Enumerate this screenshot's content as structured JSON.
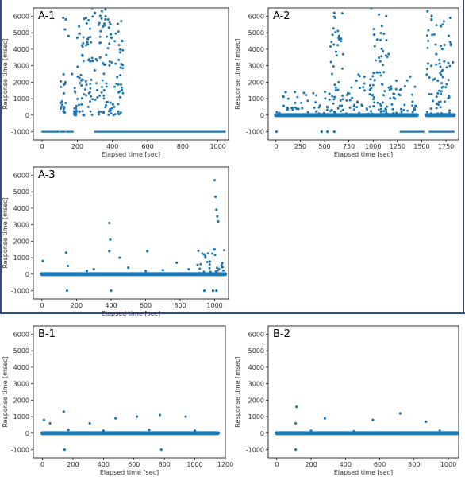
{
  "chart_data": [
    {
      "id": "A-1",
      "type": "scatter",
      "title": "A-1",
      "xlabel": "Elapsed time [sec]",
      "ylabel": "Response time [msec]",
      "xlim": [
        -50,
        1060
      ],
      "ylim": [
        -1500,
        6500
      ],
      "xticks": [
        0,
        200,
        400,
        600,
        800,
        1000
      ],
      "yticks": [
        -1000,
        0,
        1000,
        2000,
        3000,
        4000,
        5000,
        6000
      ],
      "color": "#1f77b4",
      "grid": false,
      "baseline_segments": [
        {
          "y": -1000,
          "x_start": 0,
          "x_end": 95
        },
        {
          "y": -1000,
          "x_start": 105,
          "x_end": 130
        },
        {
          "y": -1000,
          "x_start": 140,
          "x_end": 175
        },
        {
          "y": -1000,
          "x_start": 300,
          "x_end": 1040
        }
      ],
      "dense_bands": [
        {
          "x_start": 100,
          "x_end": 135,
          "y_min": 0,
          "y_max": 2500
        },
        {
          "x_start": 175,
          "x_end": 200,
          "y_min": 0,
          "y_max": 1800
        },
        {
          "x_start": 200,
          "x_end": 310,
          "y_min": 0,
          "y_max": 6000
        },
        {
          "x_start": 310,
          "x_end": 380,
          "y_min": 0,
          "y_max": 6500
        },
        {
          "x_start": 380,
          "x_end": 460,
          "y_min": 0,
          "y_max": 5700
        }
      ],
      "points": [
        [
          120,
          5900
        ],
        [
          130,
          5200
        ],
        [
          135,
          5800
        ],
        [
          150,
          4800
        ],
        [
          200,
          4700
        ],
        [
          250,
          5900
        ],
        [
          285,
          6500
        ],
        [
          300,
          6200
        ],
        [
          340,
          6300
        ],
        [
          360,
          5800
        ],
        [
          380,
          5300
        ],
        [
          390,
          4900
        ],
        [
          395,
          4700
        ],
        [
          450,
          5700
        ],
        [
          455,
          4500
        ],
        [
          450,
          3100
        ],
        [
          330,
          3500
        ],
        [
          260,
          4300
        ],
        [
          230,
          3600
        ],
        [
          170,
          2500
        ]
      ]
    },
    {
      "id": "A-2",
      "type": "scatter",
      "title": "A-2",
      "xlabel": "Elapsed time [sec]",
      "ylabel": "Response time [msec]",
      "xlim": [
        -80,
        1880
      ],
      "ylim": [
        -1500,
        6500
      ],
      "xticks": [
        0,
        250,
        500,
        750,
        1000,
        1250,
        1500,
        1750
      ],
      "yticks": [
        -1000,
        0,
        1000,
        2000,
        3000,
        4000,
        5000,
        6000
      ],
      "color": "#1f77b4",
      "grid": false,
      "baseline_segments": [
        {
          "y": 0,
          "x_start": 0,
          "x_end": 1450
        },
        {
          "y": 0,
          "x_start": 1550,
          "x_end": 1830
        },
        {
          "y": -1000,
          "x_start": 1280,
          "x_end": 1520
        },
        {
          "y": -1000,
          "x_start": 1580,
          "x_end": 1830
        }
      ],
      "dense_bands": [
        {
          "x_start": 0,
          "x_end": 550,
          "y_min": 0,
          "y_max": 1500
        },
        {
          "x_start": 550,
          "x_end": 700,
          "y_min": 0,
          "y_max": 6200
        },
        {
          "x_start": 700,
          "x_end": 1000,
          "y_min": 0,
          "y_max": 2500
        },
        {
          "x_start": 1000,
          "x_end": 1150,
          "y_min": 0,
          "y_max": 6000
        },
        {
          "x_start": 1150,
          "x_end": 1450,
          "y_min": 0,
          "y_max": 2500
        },
        {
          "x_start": 1550,
          "x_end": 1800,
          "y_min": 0,
          "y_max": 6300
        }
      ],
      "points": [
        [
          5,
          -1000
        ],
        [
          470,
          -1000
        ],
        [
          530,
          -1000
        ],
        [
          600,
          6200
        ],
        [
          610,
          5900
        ],
        [
          980,
          6500
        ],
        [
          1060,
          6100
        ],
        [
          1135,
          6000
        ],
        [
          1160,
          3700
        ],
        [
          1560,
          6300
        ],
        [
          1600,
          5800
        ],
        [
          1650,
          3700
        ],
        [
          1800,
          4300
        ],
        [
          1820,
          3200
        ],
        [
          100,
          1400
        ],
        [
          600,
          -1000
        ]
      ]
    },
    {
      "id": "A-3",
      "type": "scatter",
      "title": "A-3",
      "xlabel": "Elapsed time [sec]",
      "ylabel": "Response time [msec]",
      "xlim": [
        -50,
        1080
      ],
      "ylim": [
        -1500,
        6500
      ],
      "xticks": [
        0,
        200,
        400,
        600,
        800,
        1000
      ],
      "yticks": [
        -1000,
        0,
        1000,
        2000,
        3000,
        4000,
        5000,
        6000
      ],
      "color": "#1f77b4",
      "grid": false,
      "baseline_segments": [
        {
          "y": 0,
          "x_start": 0,
          "x_end": 1060
        }
      ],
      "dense_bands": [
        {
          "x_start": 900,
          "x_end": 1060,
          "y_min": 0,
          "y_max": 1600
        }
      ],
      "points": [
        [
          5,
          800
        ],
        [
          140,
          1300
        ],
        [
          145,
          -1000
        ],
        [
          390,
          3100
        ],
        [
          395,
          2100
        ],
        [
          400,
          -1000
        ],
        [
          390,
          1400
        ],
        [
          450,
          1000
        ],
        [
          610,
          1400
        ],
        [
          780,
          700
        ],
        [
          1000,
          5700
        ],
        [
          1005,
          4700
        ],
        [
          1010,
          3900
        ],
        [
          1015,
          3500
        ],
        [
          1020,
          3200
        ],
        [
          1000,
          1500
        ],
        [
          940,
          -1000
        ],
        [
          990,
          -1000
        ],
        [
          1010,
          -1000
        ],
        [
          150,
          500
        ],
        [
          300,
          300
        ],
        [
          500,
          400
        ],
        [
          600,
          200
        ],
        [
          700,
          250
        ],
        [
          850,
          300
        ],
        [
          260,
          200
        ]
      ]
    },
    {
      "id": "B-1",
      "type": "scatter",
      "title": "B-1",
      "xlabel": "Elapsed time [sec]",
      "ylabel": "Response time [msec]",
      "xlim": [
        -60,
        1200
      ],
      "ylim": [
        -1500,
        6500
      ],
      "xticks": [
        0,
        200,
        400,
        600,
        800,
        1000,
        1200
      ],
      "yticks": [
        -1000,
        0,
        1000,
        2000,
        3000,
        4000,
        5000,
        6000
      ],
      "color": "#1f77b4",
      "grid": false,
      "baseline_segments": [
        {
          "y": 0,
          "x_start": 0,
          "x_end": 1150
        }
      ],
      "dense_bands": [],
      "points": [
        [
          10,
          800
        ],
        [
          50,
          600
        ],
        [
          140,
          1300
        ],
        [
          145,
          -1000
        ],
        [
          310,
          600
        ],
        [
          480,
          900
        ],
        [
          620,
          1000
        ],
        [
          770,
          1100
        ],
        [
          780,
          -1000
        ],
        [
          940,
          1000
        ],
        [
          170,
          200
        ],
        [
          400,
          150
        ],
        [
          700,
          200
        ],
        [
          1000,
          150
        ]
      ]
    },
    {
      "id": "B-2",
      "type": "scatter",
      "title": "B-2",
      "xlabel": "Elapsed time [sec]",
      "ylabel": "Response time [msec]",
      "xlim": [
        -50,
        1060
      ],
      "ylim": [
        -1500,
        6500
      ],
      "xticks": [
        0,
        200,
        400,
        600,
        800,
        1000
      ],
      "yticks": [
        -1000,
        0,
        1000,
        2000,
        3000,
        4000,
        5000,
        6000
      ],
      "color": "#1f77b4",
      "grid": false,
      "baseline_segments": [
        {
          "y": 0,
          "x_start": 0,
          "x_end": 1050
        }
      ],
      "dense_bands": [],
      "points": [
        [
          115,
          1600
        ],
        [
          110,
          600
        ],
        [
          110,
          -1000
        ],
        [
          280,
          900
        ],
        [
          560,
          800
        ],
        [
          720,
          1200
        ],
        [
          870,
          700
        ],
        [
          200,
          150
        ],
        [
          450,
          120
        ],
        [
          950,
          150
        ]
      ]
    }
  ]
}
